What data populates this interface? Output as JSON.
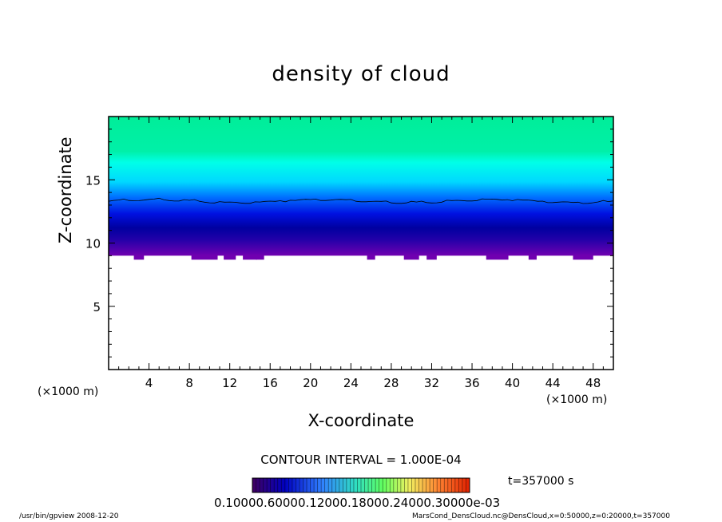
{
  "chart_data": {
    "type": "heatmap",
    "title": "density of cloud",
    "xlabel": "X-coordinate",
    "ylabel": "Z-coordinate",
    "x_unit_label": "(×1000 m)",
    "x_unit_label_right": "(×1000 m)",
    "xlim": [
      0,
      50
    ],
    "ylim": [
      0,
      20
    ],
    "x_ticks": [
      "4",
      "8",
      "12",
      "16",
      "20",
      "24",
      "28",
      "32",
      "36",
      "40",
      "44",
      "48"
    ],
    "y_ticks": [
      "5",
      "10",
      "15"
    ],
    "contour_interval": "CONTOUR INTERVAL = 1.000E-04",
    "time": "t=357000 s",
    "colorbar_labels": "0.10000.60000.12000.18000.24000.30000e-03",
    "cloud_base_z": 9.0,
    "cloud_top_z": 20.0,
    "contour_line_z": 13.3,
    "colors": {
      "base": "#7000b0",
      "dense": "#0000d0",
      "mid": "#0090ff",
      "upper": "#00ffee",
      "top": "#00ee99"
    }
  },
  "footer": {
    "left": "/usr/bin/gpview   2008-12-20",
    "right": "MarsCond_DensCloud.nc@DensCloud,x=0:50000,z=0:20000,t=357000"
  }
}
